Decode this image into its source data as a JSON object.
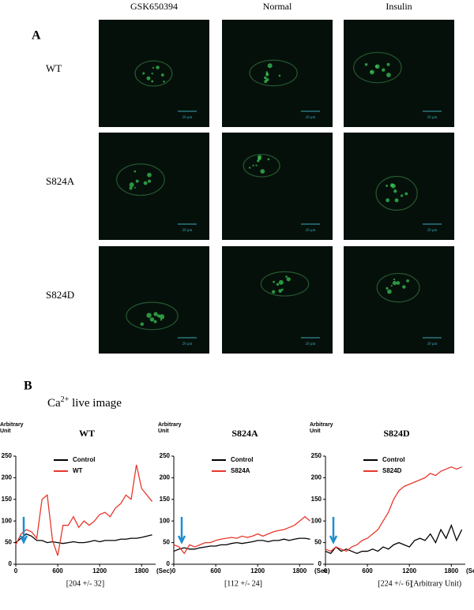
{
  "panel_a": {
    "label": "A",
    "columns": [
      "GSK650394",
      "Normal",
      "Insulin"
    ],
    "rows": [
      "WT",
      "S824A",
      "S824D"
    ],
    "scale_bar": "20 μm"
  },
  "panel_b": {
    "label": "B",
    "title": "Ca",
    "title_sup": "2+",
    "title_rest": " live image"
  },
  "chart_data": [
    {
      "type": "line",
      "title": "WT",
      "y_label": [
        "Arbitrary",
        "Unit"
      ],
      "x_unit": "(Sec)",
      "footnote": "[204 +/- 32]",
      "x": [
        0,
        75,
        150,
        225,
        300,
        375,
        450,
        525,
        600,
        675,
        750,
        825,
        900,
        975,
        1050,
        1125,
        1200,
        1275,
        1350,
        1425,
        1500,
        1575,
        1650,
        1725,
        1800,
        1875,
        1950
      ],
      "series": [
        {
          "name": "Control",
          "color": "#000000",
          "values": [
            50,
            60,
            70,
            65,
            55,
            55,
            50,
            52,
            50,
            48,
            50,
            52,
            50,
            50,
            52,
            55,
            52,
            55,
            55,
            55,
            58,
            58,
            60,
            60,
            62,
            65,
            68
          ]
        },
        {
          "name": "WT",
          "color": "#e8382b",
          "values": [
            45,
            70,
            80,
            75,
            60,
            150,
            160,
            55,
            20,
            90,
            90,
            110,
            85,
            100,
            90,
            100,
            115,
            120,
            110,
            130,
            140,
            160,
            150,
            230,
            175,
            160,
            145
          ]
        }
      ],
      "xlim": [
        0,
        2000
      ],
      "xticks": [
        0,
        600,
        1200,
        1800
      ],
      "ylim": [
        0,
        250
      ],
      "yticks": [
        0,
        50,
        100,
        150,
        200,
        250
      ]
    },
    {
      "type": "line",
      "title": "S824A",
      "y_label": [
        "Arbitrary",
        "Unit"
      ],
      "x_unit": "(Sec)",
      "footnote": "[112  +/- 24]",
      "x": [
        0,
        75,
        150,
        225,
        300,
        375,
        450,
        525,
        600,
        675,
        750,
        825,
        900,
        975,
        1050,
        1125,
        1200,
        1275,
        1350,
        1425,
        1500,
        1575,
        1650,
        1725,
        1800,
        1875,
        1950
      ],
      "series": [
        {
          "name": "Control",
          "color": "#000000",
          "values": [
            30,
            35,
            38,
            35,
            35,
            38,
            40,
            42,
            42,
            45,
            45,
            48,
            50,
            48,
            50,
            52,
            55,
            55,
            52,
            55,
            55,
            58,
            55,
            58,
            60,
            60,
            58
          ]
        },
        {
          "name": "S824A",
          "color": "#e8382b",
          "values": [
            45,
            40,
            25,
            45,
            40,
            45,
            50,
            50,
            55,
            58,
            60,
            62,
            60,
            65,
            62,
            65,
            70,
            65,
            70,
            75,
            78,
            80,
            85,
            90,
            100,
            110,
            100
          ]
        }
      ],
      "xlim": [
        0,
        2000
      ],
      "xticks": [
        0,
        600,
        1200,
        1800
      ],
      "ylim": [
        0,
        250
      ],
      "yticks": [
        0,
        50,
        100,
        150,
        200,
        250
      ]
    },
    {
      "type": "line",
      "title": "S824D",
      "y_label": [
        "Arbitrary",
        "Unit"
      ],
      "x_unit": "(Sec)",
      "footnote": "[224 +/- 6]",
      "footnote_unit": "(Arbitrary  Unit)",
      "x": [
        0,
        75,
        150,
        225,
        300,
        375,
        450,
        525,
        600,
        675,
        750,
        825,
        900,
        975,
        1050,
        1125,
        1200,
        1275,
        1350,
        1425,
        1500,
        1575,
        1650,
        1725,
        1800,
        1875,
        1950
      ],
      "series": [
        {
          "name": "Control",
          "color": "#000000",
          "values": [
            30,
            25,
            40,
            30,
            35,
            30,
            25,
            30,
            30,
            35,
            30,
            40,
            35,
            45,
            50,
            45,
            40,
            55,
            60,
            55,
            70,
            50,
            80,
            60,
            90,
            55,
            80
          ]
        },
        {
          "name": "S824D",
          "color": "#e8382b",
          "values": [
            35,
            30,
            40,
            35,
            30,
            40,
            45,
            55,
            60,
            70,
            80,
            100,
            120,
            150,
            170,
            180,
            185,
            190,
            195,
            200,
            210,
            205,
            215,
            220,
            225,
            220,
            225
          ]
        }
      ],
      "xlim": [
        0,
        2000
      ],
      "xticks": [
        0,
        600,
        1200,
        1800
      ],
      "ylim": [
        0,
        250
      ],
      "yticks": [
        0,
        50,
        100,
        150,
        200,
        250
      ]
    }
  ]
}
